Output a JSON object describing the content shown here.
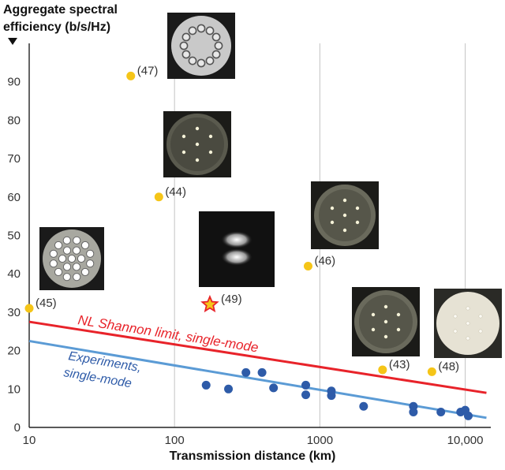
{
  "chart_data": {
    "type": "scatter",
    "title": "",
    "ylabel": "Aggregate spectral efficiency (b/s/Hz)",
    "xlabel": "Transmission distance (km)",
    "xscale": "log",
    "xlim": [
      10,
      15000
    ],
    "ylim": [
      0,
      100
    ],
    "grid": "vertical at decades",
    "x_ticks": [
      {
        "value": 10,
        "label": "10"
      },
      {
        "value": 100,
        "label": "100"
      },
      {
        "value": 1000,
        "label": "1000"
      },
      {
        "value": 10000,
        "label": "10,000"
      }
    ],
    "y_ticks": [
      {
        "value": 0,
        "label": "0"
      },
      {
        "value": 10,
        "label": "10"
      },
      {
        "value": 20,
        "label": "20"
      },
      {
        "value": 30,
        "label": "30"
      },
      {
        "value": 40,
        "label": "40"
      },
      {
        "value": 50,
        "label": "50"
      },
      {
        "value": 60,
        "label": "60"
      },
      {
        "value": 70,
        "label": "70"
      },
      {
        "value": 80,
        "label": "80"
      },
      {
        "value": 90,
        "label": "90"
      }
    ],
    "lines": [
      {
        "label_line1": "NL Shannon limit, single-mode",
        "label_line2": "",
        "color": "#e8232a",
        "points": [
          [
            10,
            27.5
          ],
          [
            14000,
            9
          ]
        ]
      },
      {
        "label_line1": "Experiments,",
        "label_line2": "single-mode",
        "color": "#5b9bd5",
        "points": [
          [
            10,
            22.5
          ],
          [
            14000,
            2.5
          ]
        ]
      }
    ],
    "multicore_points": [
      {
        "x": 10,
        "y": 31,
        "label": "(45)"
      },
      {
        "x": 50,
        "y": 91.5,
        "label": "(47)"
      },
      {
        "x": 78,
        "y": 60,
        "label": "(44)"
      },
      {
        "x": 830,
        "y": 42,
        "label": "(46)"
      },
      {
        "x": 2700,
        "y": 15,
        "label": "(43)"
      },
      {
        "x": 5900,
        "y": 14.5,
        "label": "(48)"
      }
    ],
    "star_point": {
      "x": 175,
      "y": 32,
      "label": "(49)"
    },
    "singlemode_points": [
      {
        "x": 165,
        "y": 11
      },
      {
        "x": 235,
        "y": 10
      },
      {
        "x": 310,
        "y": 14.3
      },
      {
        "x": 400,
        "y": 14.3
      },
      {
        "x": 480,
        "y": 10.3
      },
      {
        "x": 800,
        "y": 11
      },
      {
        "x": 800,
        "y": 8.5
      },
      {
        "x": 1200,
        "y": 9.5
      },
      {
        "x": 1200,
        "y": 8.3
      },
      {
        "x": 2000,
        "y": 5.5
      },
      {
        "x": 4400,
        "y": 5.5
      },
      {
        "x": 4400,
        "y": 4
      },
      {
        "x": 6800,
        "y": 4
      },
      {
        "x": 9300,
        "y": 4
      },
      {
        "x": 10000,
        "y": 4.5
      },
      {
        "x": 10500,
        "y": 3
      }
    ],
    "colors": {
      "multicore": "#f5c518",
      "singlemode": "#2e5ba8",
      "star_fill": "#f5c518",
      "star_stroke": "#e8232a",
      "grid": "#cccccc"
    }
  },
  "labels": {
    "ylabel_line1": "Aggregate spectral",
    "ylabel_line2": "efficiency (b/s/Hz)",
    "xlabel": "Transmission distance (km)"
  },
  "fiber_images": [
    {
      "name": "fiber-image-47",
      "kind": "ring"
    },
    {
      "name": "fiber-image-44",
      "kind": "seven-core"
    },
    {
      "name": "fiber-image-45",
      "kind": "nineteen-core"
    },
    {
      "name": "fiber-image-49",
      "kind": "few-mode"
    },
    {
      "name": "fiber-image-46",
      "kind": "seven-core"
    },
    {
      "name": "fiber-image-43",
      "kind": "seven-core"
    },
    {
      "name": "fiber-image-48",
      "kind": "seven-core-light"
    }
  ]
}
